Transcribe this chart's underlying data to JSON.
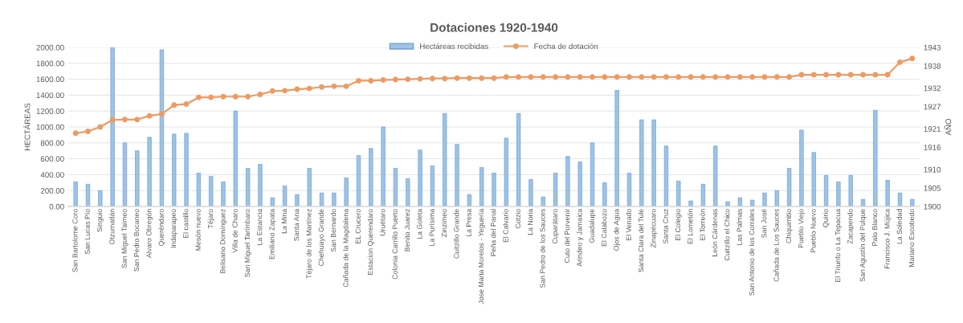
{
  "chart_data": {
    "type": "bar",
    "title": "Dotaciones 1920-1940",
    "ylabel": "HECTÁREAS",
    "y2label": "AÑO",
    "categories": [
      "San Bartolome Coro",
      "San Lucas Pío",
      "Singuio",
      "Otzumatlán",
      "San Miguel Taimeo",
      "San Pedro Bocaneo",
      "Alvaro Obregón",
      "Queréndaro",
      "Indaparapeo",
      "El castillo",
      "Mesón nuevo",
      "Téjaro",
      "Belisario Domínguez",
      "Villa de Charo",
      "San Miguel Tarímbaro",
      "La Estancia",
      "Emiliano Zapata",
      "La Mina",
      "Santa Ana",
      "Téjaro de los Martínez",
      "Chehuayo Grande",
      "San Bernardo",
      "Cañada de la Magdalena",
      "EL Crucero",
      "Estacion Querendaro",
      "Uruétaro",
      "Colonia Carrillo Puerto",
      "Benito Juarez",
      "La Goleta",
      "La Purísima",
      "Zinzimeo",
      "Cuitzillo Grande",
      "La Presa",
      "Jose Maria Morelos - Yeguería",
      "Peña del Panal",
      "El Calvario",
      "Cotzio",
      "La Noria",
      "San Pedro de los Sauces",
      "Cuparátaro",
      "Cuto del Porvenir",
      "Arindeo y Jamaica",
      "Guadalupe",
      "El Calabozo",
      "Ojos de Agua",
      "El Venado",
      "Santa Clara del Tule",
      "Zinapécuaro",
      "Santa Cruz",
      "El Colegio",
      "El Lometón",
      "El Torreón",
      "León Cárdenas",
      "Cuitzillo el Chico",
      "Las Palmas",
      "San Antonio de los Corrales",
      "San José",
      "Cañada de Los Sauces",
      "Chiquimitio",
      "Pueblo Viejo",
      "Pueblo Nuevo",
      "Quirio",
      "El Triunfo o La Tepacua",
      "Zacapendo",
      "San Agustín del Pulque",
      "Palo Blanco",
      "Francisco J. Mújica",
      "La Soledad",
      "Mariano Escobedo"
    ],
    "series": [
      {
        "name": "Hectáreas recibidas",
        "color": "#9dc3e6",
        "values": [
          310,
          280,
          200,
          2000,
          800,
          700,
          870,
          1970,
          910,
          920,
          420,
          380,
          310,
          1200,
          480,
          530,
          110,
          260,
          150,
          480,
          170,
          170,
          360,
          640,
          730,
          1000,
          480,
          350,
          710,
          510,
          1170,
          780,
          150,
          490,
          420,
          860,
          1170,
          340,
          120,
          420,
          630,
          560,
          800,
          300,
          1460,
          420,
          1090,
          1090,
          760,
          320,
          70,
          280,
          760,
          60,
          110,
          80,
          170,
          200,
          480,
          960,
          680,
          390,
          310,
          390,
          90,
          1210,
          330,
          170,
          90
        ]
      },
      {
        "name": "Fecha de dotación",
        "type": "line",
        "axis": "y2",
        "color": "#ed9b63",
        "marker": "circle",
        "values": [
          1919.8,
          1920.3,
          1921.5,
          1923.4,
          1923.5,
          1923.5,
          1924.5,
          1925,
          1927.4,
          1927.7,
          1929.5,
          1929.5,
          1929.7,
          1929.7,
          1929.7,
          1930.3,
          1931.2,
          1931.3,
          1931.7,
          1931.9,
          1932.3,
          1932.5,
          1932.5,
          1934,
          1934,
          1934.2,
          1934.3,
          1934.4,
          1934.5,
          1934.6,
          1934.6,
          1934.7,
          1934.7,
          1934.7,
          1934.7,
          1935,
          1935,
          1935,
          1935,
          1935,
          1935,
          1935,
          1935,
          1935,
          1935,
          1935,
          1935,
          1935,
          1935,
          1935,
          1935,
          1935,
          1935,
          1935,
          1935,
          1935,
          1935,
          1935,
          1935,
          1935.6,
          1935.6,
          1935.6,
          1935.6,
          1935.6,
          1935.6,
          1935.6,
          1935.6,
          1939,
          1940
        ]
      }
    ],
    "ylim": [
      0,
      2000
    ],
    "yticks": [
      {
        "value": 0,
        "label": "0.00"
      },
      {
        "value": 200,
        "label": "200.00"
      },
      {
        "value": 400,
        "label": "400.00"
      },
      {
        "value": 600,
        "label": "600.00"
      },
      {
        "value": 800,
        "label": "800.00"
      },
      {
        "value": 1000,
        "label": "1000.00"
      },
      {
        "value": 1200,
        "label": "1200.00"
      },
      {
        "value": 1400,
        "label": "1400.00"
      },
      {
        "value": 1600,
        "label": "1600.00"
      },
      {
        "value": 1800,
        "label": "1800.00"
      },
      {
        "value": 2000,
        "label": "2000.00"
      }
    ],
    "y2lim": [
      1900,
      1943
    ],
    "y2ticks": [
      1900,
      1905,
      1910,
      1916,
      1921,
      1927,
      1932,
      1938,
      1943
    ],
    "grid": "y",
    "legend": "top"
  }
}
